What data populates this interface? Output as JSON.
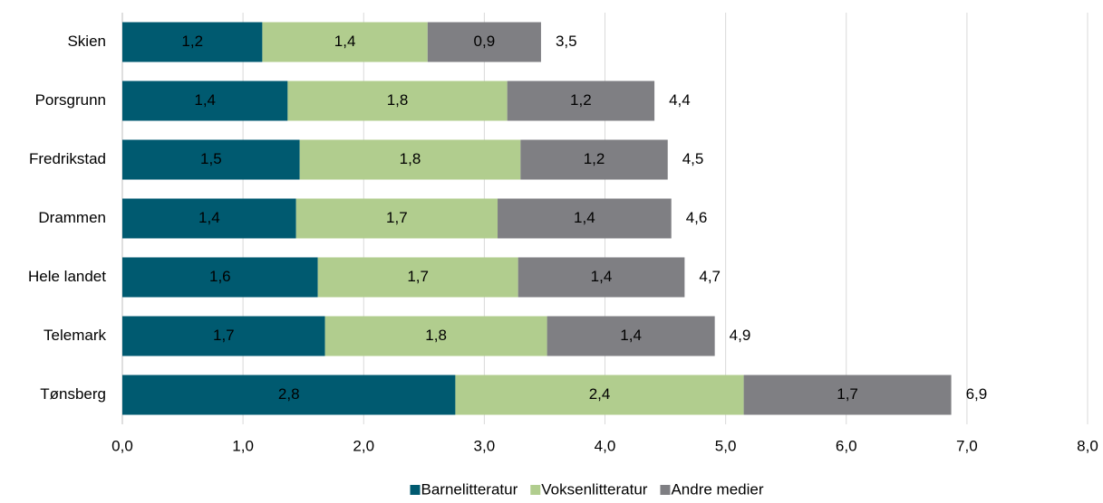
{
  "chart_data": {
    "type": "stacked-bar-horizontal",
    "categories": [
      "Skien",
      "Porsgrunn",
      "Fredrikstad",
      "Drammen",
      "Hele landet",
      "Telemark",
      "Tønsberg"
    ],
    "series": [
      {
        "name": "Barnelitteratur",
        "color": "#005a70",
        "values": [
          1.16,
          1.37,
          1.47,
          1.44,
          1.62,
          1.68,
          2.76
        ],
        "value_labels": [
          "1,2",
          "1,4",
          "1,5",
          "1,4",
          "1,6",
          "1,7",
          "2,8"
        ]
      },
      {
        "name": "Voksenlitteratur",
        "color": "#b1cd8e",
        "values": [
          1.37,
          1.82,
          1.83,
          1.67,
          1.66,
          1.84,
          2.39
        ],
        "value_labels": [
          "1,4",
          "1,8",
          "1,8",
          "1,7",
          "1,7",
          "1,8",
          "2,4"
        ]
      },
      {
        "name": "Andre medier",
        "color": "#7f7f83",
        "values": [
          0.94,
          1.22,
          1.22,
          1.44,
          1.38,
          1.39,
          1.72
        ],
        "value_labels": [
          "0,9",
          "1,2",
          "1,2",
          "1,4",
          "1,4",
          "1,4",
          "1,7"
        ]
      }
    ],
    "totals": [
      3.47,
      4.41,
      4.52,
      4.55,
      4.66,
      4.91,
      6.87
    ],
    "total_labels": [
      "3,5",
      "4,4",
      "4,5",
      "4,6",
      "4,7",
      "4,9",
      "6,9"
    ],
    "xlim": [
      0,
      8
    ],
    "xticks": [
      {
        "value": 0,
        "label": "0,0"
      },
      {
        "value": 1,
        "label": "1,0"
      },
      {
        "value": 2,
        "label": "2,0"
      },
      {
        "value": 3,
        "label": "3,0"
      },
      {
        "value": 4,
        "label": "4,0"
      },
      {
        "value": 5,
        "label": "5,0"
      },
      {
        "value": 6,
        "label": "6,0"
      },
      {
        "value": 7,
        "label": "7,0"
      },
      {
        "value": 8,
        "label": "8,0"
      }
    ],
    "grid": true,
    "legend": "bottom"
  }
}
